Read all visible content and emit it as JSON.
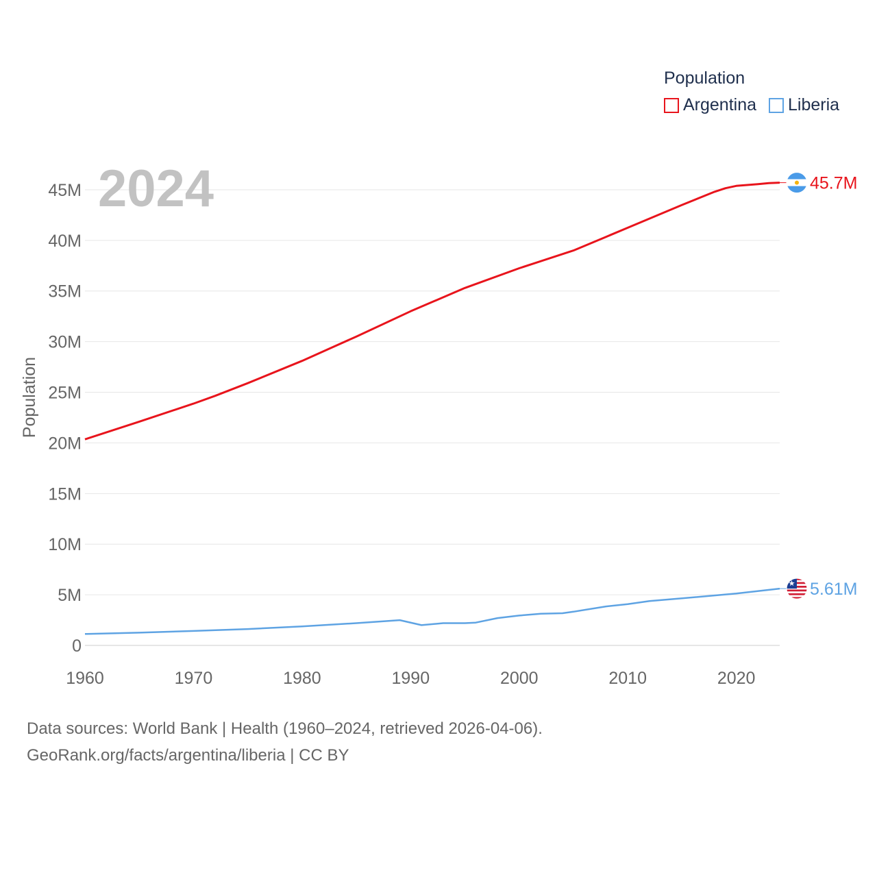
{
  "legend": {
    "title": "Population",
    "items": [
      {
        "label": "Argentina",
        "color": "#e8141c"
      },
      {
        "label": "Liberia",
        "color": "#5ea3e3"
      }
    ]
  },
  "year_watermark": "2024",
  "source": {
    "line1": "Data sources: World Bank | Health (1960–2024, retrieved 2026-04-06).",
    "line2": "GeoRank.org/facts/argentina/liberia | CC BY"
  },
  "chart_data": {
    "type": "line",
    "title": "Population",
    "xlabel": "",
    "ylabel": "Population",
    "xlim": [
      1960,
      2024
    ],
    "ylim": [
      0,
      47500000
    ],
    "x_ticks": [
      1960,
      1970,
      1980,
      1990,
      2000,
      2010,
      2020
    ],
    "x_tick_labels": [
      "1960",
      "1970",
      "1980",
      "1990",
      "2000",
      "2010",
      "2020"
    ],
    "y_ticks": [
      0,
      5000000,
      10000000,
      15000000,
      20000000,
      25000000,
      30000000,
      35000000,
      40000000,
      45000000
    ],
    "y_tick_labels": [
      "0",
      "5M",
      "10M",
      "15M",
      "20M",
      "25M",
      "30M",
      "35M",
      "40M",
      "45M"
    ],
    "grid": true,
    "series": [
      {
        "name": "Argentina",
        "color": "#e8141c",
        "end_label": "45.7M",
        "flag": "argentina-flag",
        "points": [
          [
            1960,
            20350000
          ],
          [
            1965,
            22100000
          ],
          [
            1970,
            23880000
          ],
          [
            1972,
            24650000
          ],
          [
            1975,
            25900000
          ],
          [
            1980,
            28100000
          ],
          [
            1985,
            30500000
          ],
          [
            1990,
            33000000
          ],
          [
            1995,
            35300000
          ],
          [
            2000,
            37250000
          ],
          [
            2005,
            39000000
          ],
          [
            2008,
            40350000
          ],
          [
            2010,
            41250000
          ],
          [
            2015,
            43500000
          ],
          [
            2018,
            44800000
          ],
          [
            2019,
            45150000
          ],
          [
            2020,
            45380000
          ],
          [
            2021,
            45470000
          ],
          [
            2022,
            45550000
          ],
          [
            2023,
            45650000
          ],
          [
            2024,
            45700000
          ]
        ]
      },
      {
        "name": "Liberia",
        "color": "#5ea3e3",
        "end_label": "5.61M",
        "flag": "liberia-flag",
        "points": [
          [
            1960,
            1130000
          ],
          [
            1965,
            1260000
          ],
          [
            1970,
            1430000
          ],
          [
            1975,
            1620000
          ],
          [
            1980,
            1880000
          ],
          [
            1985,
            2200000
          ],
          [
            1989,
            2500000
          ],
          [
            1991,
            2000000
          ],
          [
            1993,
            2200000
          ],
          [
            1995,
            2200000
          ],
          [
            1996,
            2250000
          ],
          [
            1998,
            2700000
          ],
          [
            2000,
            2950000
          ],
          [
            2002,
            3130000
          ],
          [
            2004,
            3180000
          ],
          [
            2005,
            3330000
          ],
          [
            2008,
            3850000
          ],
          [
            2010,
            4070000
          ],
          [
            2012,
            4380000
          ],
          [
            2015,
            4650000
          ],
          [
            2020,
            5120000
          ],
          [
            2024,
            5610000
          ]
        ]
      }
    ]
  }
}
